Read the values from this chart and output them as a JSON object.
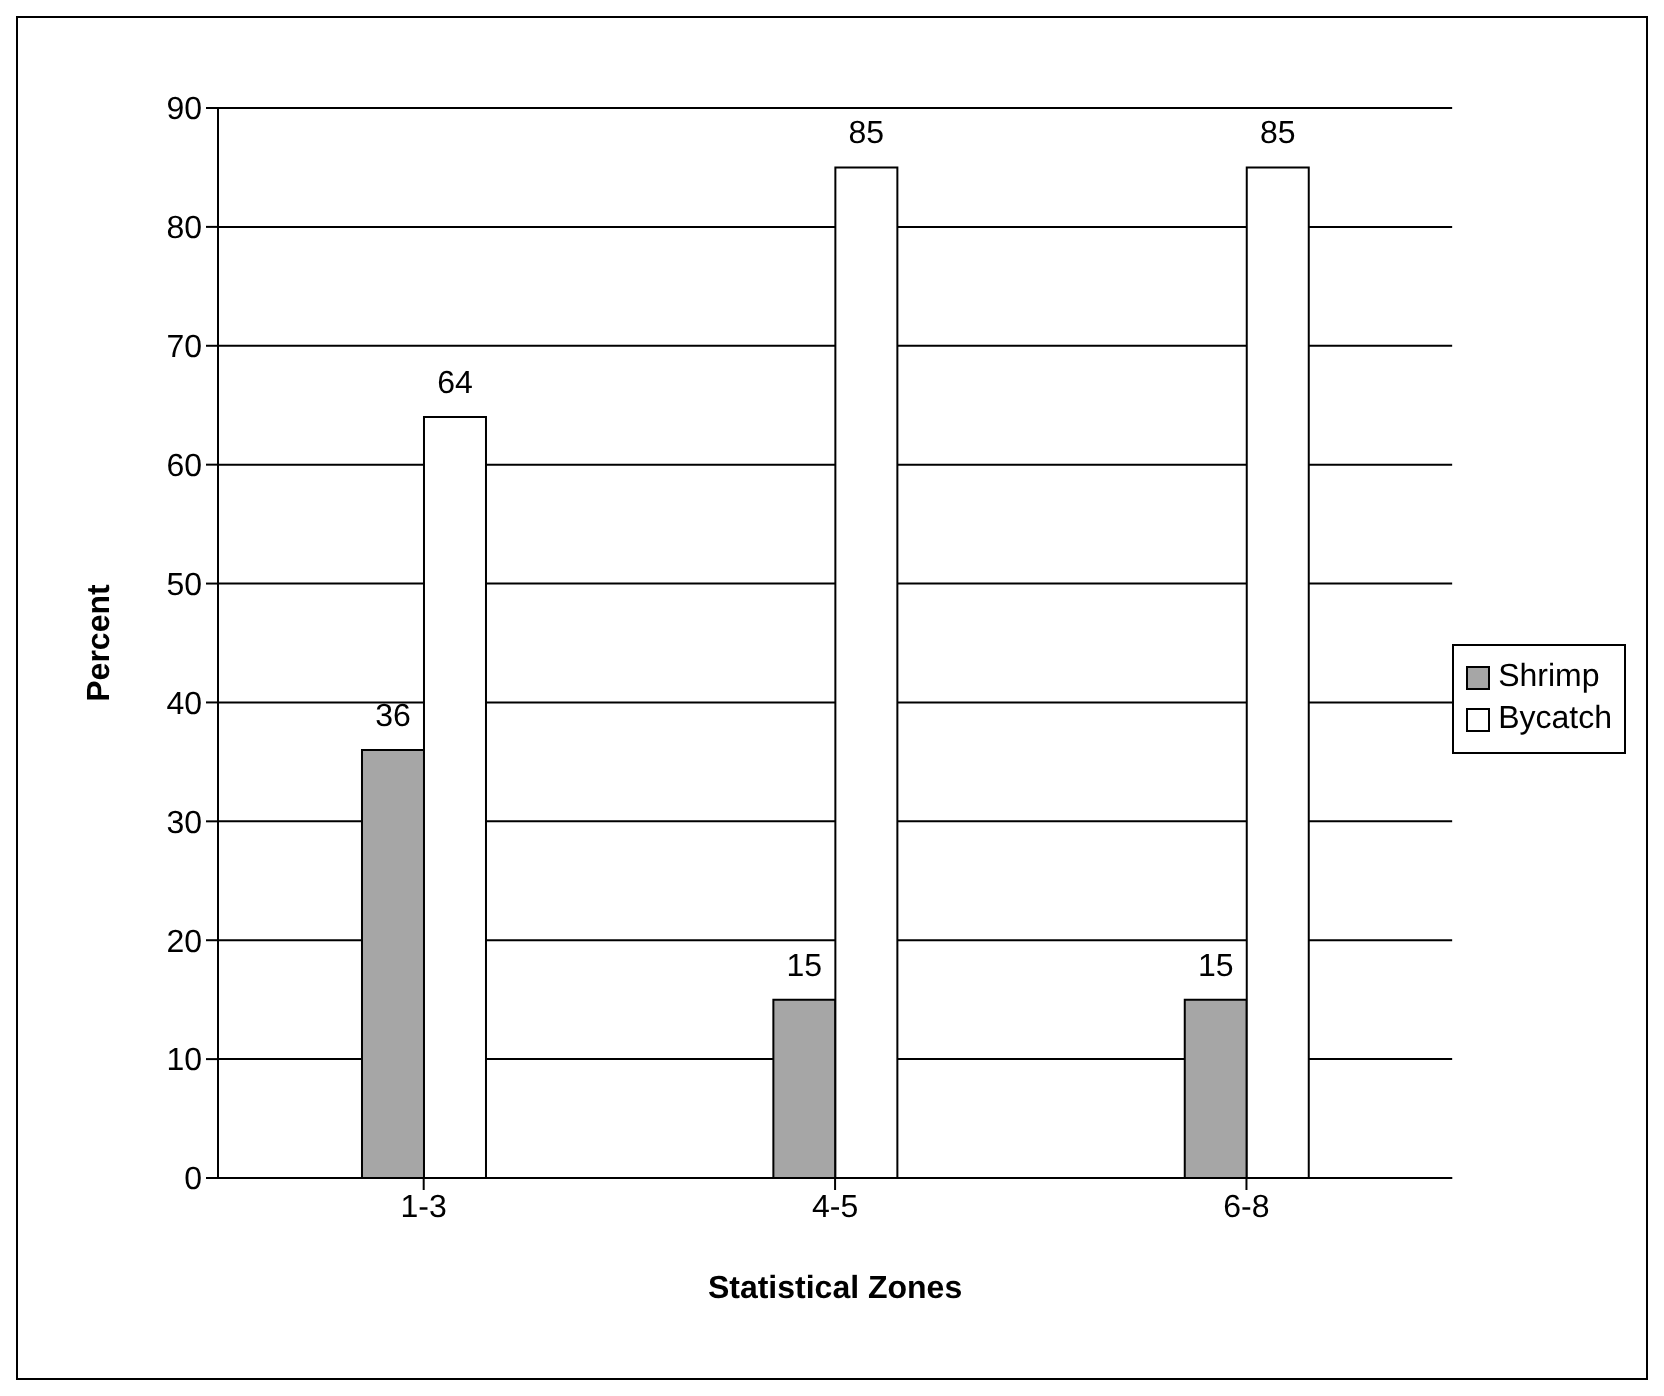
{
  "chart_data": {
    "type": "bar",
    "xlabel": "Statistical Zones",
    "ylabel": "Percent",
    "categories": [
      "1-3",
      "4-5",
      "6-8"
    ],
    "series": [
      {
        "name": "Shrimp",
        "color": "#a6a6a6",
        "values": [
          36,
          15,
          15
        ]
      },
      {
        "name": "Bycatch",
        "color": "#ffffff",
        "values": [
          64,
          85,
          85
        ]
      }
    ],
    "ylim": [
      0,
      90
    ],
    "yticks": [
      0,
      10,
      20,
      30,
      40,
      50,
      60,
      70,
      80,
      90
    ],
    "grid": "y",
    "legend": "right",
    "data_labels": true
  }
}
